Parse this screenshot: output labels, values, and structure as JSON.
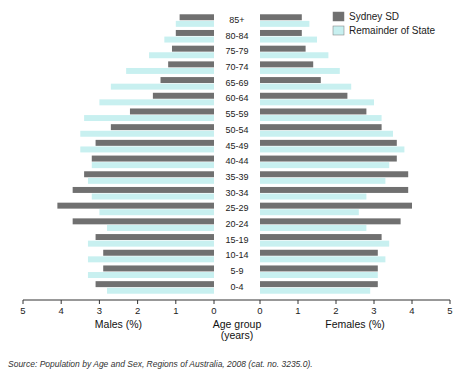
{
  "chart_data": [
    {
      "type": "bar",
      "orientation": "horizontal",
      "categories": [
        "0-4",
        "5-9",
        "10-14",
        "15-19",
        "20-24",
        "25-29",
        "30-34",
        "35-39",
        "40-44",
        "45-49",
        "50-54",
        "55-59",
        "60-64",
        "65-69",
        "70-74",
        "75-79",
        "80-84",
        "85+"
      ],
      "xlabel": "Males (%)",
      "ylabel": "Age group\n(years)",
      "xlim": [
        5,
        0
      ],
      "xticks": [
        0,
        1,
        2,
        3,
        4,
        5
      ],
      "annotations": [
        "Source: Population by Age and Sex, Regions of Australia, 2008 (cat. no. 3235.0)."
      ],
      "series": [
        {
          "color": "#707070",
          "values": [
            3.1,
            2.9,
            2.9,
            3.1,
            3.7,
            4.1,
            3.7,
            3.4,
            3.2,
            3.1,
            2.7,
            2.2,
            1.6,
            1.4,
            1.2,
            1.1,
            1.0,
            0.9
          ]
        },
        {
          "color": "#c8f0f0",
          "values": [
            2.8,
            3.3,
            3.3,
            3.3,
            2.8,
            3.0,
            3.2,
            3.3,
            3.2,
            3.5,
            3.5,
            3.4,
            3.0,
            2.7,
            2.3,
            1.7,
            1.3,
            1.0
          ]
        }
      ]
    },
    {
      "type": "bar",
      "orientation": "horizontal",
      "categories": [
        "0-4",
        "5-9",
        "10-14",
        "15-19",
        "20-24",
        "25-29",
        "30-34",
        "35-39",
        "40-44",
        "45-49",
        "50-54",
        "55-59",
        "60-64",
        "65-69",
        "70-74",
        "75-79",
        "80-84",
        "85+"
      ],
      "xlabel": "Females (%)",
      "xlim": [
        0,
        5
      ],
      "xticks": [
        0,
        1,
        2,
        3,
        4,
        5
      ],
      "legend": "upper right",
      "series": [
        {
          "name": "Sydney SD",
          "color": "#707070",
          "values": [
            3.1,
            3.1,
            3.1,
            3.2,
            3.7,
            4.0,
            3.9,
            3.9,
            3.6,
            3.6,
            3.2,
            2.8,
            2.3,
            1.6,
            1.4,
            1.2,
            1.1,
            1.1
          ]
        },
        {
          "name": "Remainder of State",
          "color": "#c8f0f0",
          "values": [
            2.9,
            3.1,
            3.3,
            3.4,
            2.8,
            2.6,
            2.8,
            3.3,
            3.4,
            3.8,
            3.5,
            3.2,
            3.0,
            2.4,
            2.1,
            1.8,
            1.5,
            1.3
          ]
        }
      ]
    }
  ]
}
